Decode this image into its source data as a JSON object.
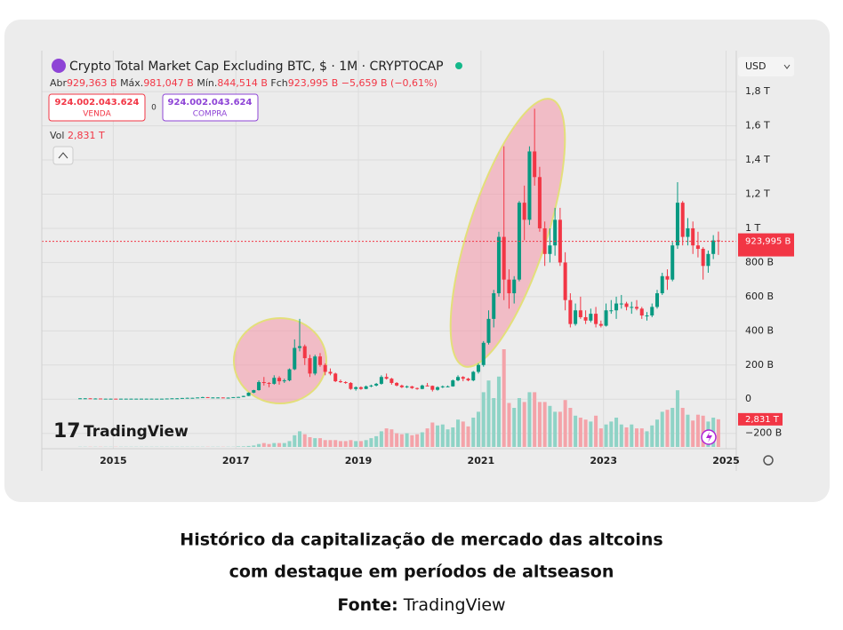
{
  "chart_data": {
    "type": "candlestick",
    "title": "Crypto Total Market Cap Excluding BTC, $ · 1M · CRYPTOCAP",
    "x": [
      "2014-06",
      "2014-07",
      "2014-08",
      "2014-09",
      "2014-10",
      "2014-11",
      "2014-12",
      "2015-01",
      "2015-02",
      "2015-03",
      "2015-04",
      "2015-05",
      "2015-06",
      "2015-07",
      "2015-08",
      "2015-09",
      "2015-10",
      "2015-11",
      "2015-12",
      "2016-01",
      "2016-02",
      "2016-03",
      "2016-04",
      "2016-05",
      "2016-06",
      "2016-07",
      "2016-08",
      "2016-09",
      "2016-10",
      "2016-11",
      "2016-12",
      "2017-01",
      "2017-02",
      "2017-03",
      "2017-04",
      "2017-05",
      "2017-06",
      "2017-07",
      "2017-08",
      "2017-09",
      "2017-10",
      "2017-11",
      "2017-12",
      "2018-01",
      "2018-02",
      "2018-03",
      "2018-04",
      "2018-05",
      "2018-06",
      "2018-07",
      "2018-08",
      "2018-09",
      "2018-10",
      "2018-11",
      "2018-12",
      "2019-01",
      "2019-02",
      "2019-03",
      "2019-04",
      "2019-05",
      "2019-06",
      "2019-07",
      "2019-08",
      "2019-09",
      "2019-10",
      "2019-11",
      "2019-12",
      "2020-01",
      "2020-02",
      "2020-03",
      "2020-04",
      "2020-05",
      "2020-06",
      "2020-07",
      "2020-08",
      "2020-09",
      "2020-10",
      "2020-11",
      "2020-12",
      "2021-01",
      "2021-02",
      "2021-03",
      "2021-04",
      "2021-05",
      "2021-06",
      "2021-07",
      "2021-08",
      "2021-09",
      "2021-10",
      "2021-11",
      "2021-12",
      "2022-01",
      "2022-02",
      "2022-03",
      "2022-04",
      "2022-05",
      "2022-06",
      "2022-07",
      "2022-08",
      "2022-09",
      "2022-10",
      "2022-11",
      "2022-12",
      "2023-01",
      "2023-02",
      "2023-03",
      "2023-04",
      "2023-05",
      "2023-06",
      "2023-07",
      "2023-08",
      "2023-09",
      "2023-10",
      "2023-11",
      "2023-12",
      "2024-01",
      "2024-02",
      "2024-03",
      "2024-04",
      "2024-05",
      "2024-06",
      "2024-07",
      "2024-08",
      "2024-09",
      "2024-10",
      "2024-11"
    ],
    "ohlc": [
      [
        5,
        6,
        4,
        5
      ],
      [
        5,
        6,
        4,
        5
      ],
      [
        5,
        5,
        4,
        4
      ],
      [
        4,
        5,
        3,
        4
      ],
      [
        4,
        4,
        3,
        3
      ],
      [
        3,
        4,
        3,
        3
      ],
      [
        3,
        4,
        3,
        3
      ],
      [
        3,
        3,
        2,
        2
      ],
      [
        2,
        3,
        2,
        3
      ],
      [
        3,
        3,
        2,
        3
      ],
      [
        3,
        3,
        2,
        3
      ],
      [
        3,
        3,
        2,
        3
      ],
      [
        3,
        4,
        3,
        3
      ],
      [
        3,
        4,
        3,
        3
      ],
      [
        3,
        3,
        2,
        3
      ],
      [
        3,
        3,
        3,
        3
      ],
      [
        3,
        3,
        2,
        3
      ],
      [
        3,
        4,
        3,
        4
      ],
      [
        4,
        5,
        4,
        5
      ],
      [
        5,
        6,
        4,
        5
      ],
      [
        5,
        7,
        5,
        7
      ],
      [
        7,
        9,
        6,
        8
      ],
      [
        8,
        8,
        7,
        8
      ],
      [
        8,
        10,
        7,
        10
      ],
      [
        10,
        14,
        9,
        12
      ],
      [
        12,
        12,
        9,
        10
      ],
      [
        10,
        11,
        9,
        10
      ],
      [
        10,
        11,
        9,
        10
      ],
      [
        10,
        10,
        9,
        9
      ],
      [
        9,
        10,
        8,
        9
      ],
      [
        9,
        12,
        9,
        12
      ],
      [
        12,
        14,
        11,
        13
      ],
      [
        13,
        20,
        12,
        19
      ],
      [
        19,
        40,
        18,
        38
      ],
      [
        38,
        55,
        35,
        53
      ],
      [
        53,
        110,
        50,
        100
      ],
      [
        100,
        130,
        80,
        95
      ],
      [
        95,
        100,
        70,
        90
      ],
      [
        90,
        140,
        85,
        125
      ],
      [
        125,
        135,
        85,
        105
      ],
      [
        105,
        120,
        95,
        110
      ],
      [
        110,
        180,
        105,
        175
      ],
      [
        175,
        350,
        170,
        300
      ],
      [
        300,
        470,
        280,
        310
      ],
      [
        310,
        320,
        200,
        240
      ],
      [
        240,
        260,
        130,
        150
      ],
      [
        150,
        260,
        140,
        250
      ],
      [
        250,
        270,
        190,
        200
      ],
      [
        200,
        210,
        140,
        160
      ],
      [
        160,
        180,
        140,
        150
      ],
      [
        150,
        155,
        100,
        105
      ],
      [
        105,
        115,
        95,
        100
      ],
      [
        100,
        105,
        90,
        95
      ],
      [
        95,
        100,
        55,
        60
      ],
      [
        60,
        75,
        50,
        70
      ],
      [
        70,
        75,
        55,
        60
      ],
      [
        60,
        80,
        58,
        75
      ],
      [
        75,
        85,
        70,
        80
      ],
      [
        80,
        95,
        75,
        90
      ],
      [
        90,
        140,
        85,
        130
      ],
      [
        130,
        150,
        115,
        120
      ],
      [
        120,
        125,
        85,
        95
      ],
      [
        95,
        100,
        75,
        80
      ],
      [
        80,
        85,
        65,
        70
      ],
      [
        70,
        80,
        65,
        75
      ],
      [
        75,
        78,
        60,
        65
      ],
      [
        65,
        68,
        55,
        60
      ],
      [
        60,
        85,
        58,
        80
      ],
      [
        80,
        95,
        75,
        78
      ],
      [
        78,
        80,
        45,
        55
      ],
      [
        55,
        75,
        50,
        70
      ],
      [
        70,
        80,
        65,
        75
      ],
      [
        75,
        80,
        70,
        75
      ],
      [
        75,
        115,
        73,
        110
      ],
      [
        110,
        140,
        105,
        130
      ],
      [
        130,
        135,
        105,
        120
      ],
      [
        120,
        125,
        105,
        110
      ],
      [
        110,
        165,
        105,
        160
      ],
      [
        160,
        210,
        150,
        200
      ],
      [
        200,
        340,
        190,
        330
      ],
      [
        330,
        520,
        320,
        470
      ],
      [
        470,
        640,
        420,
        620
      ],
      [
        620,
        980,
        600,
        950
      ],
      [
        950,
        1480,
        580,
        700
      ],
      [
        700,
        760,
        530,
        620
      ],
      [
        620,
        720,
        560,
        700
      ],
      [
        700,
        1160,
        690,
        1150
      ],
      [
        1150,
        1250,
        930,
        1050
      ],
      [
        1050,
        1480,
        1020,
        1450
      ],
      [
        1450,
        1700,
        1250,
        1300
      ],
      [
        1300,
        1360,
        980,
        1000
      ],
      [
        1000,
        1040,
        780,
        850
      ],
      [
        850,
        1000,
        800,
        900
      ],
      [
        900,
        1120,
        840,
        1050
      ],
      [
        1050,
        1120,
        780,
        800
      ],
      [
        800,
        860,
        520,
        580
      ],
      [
        580,
        620,
        420,
        440
      ],
      [
        440,
        560,
        430,
        520
      ],
      [
        520,
        600,
        470,
        480
      ],
      [
        480,
        520,
        440,
        460
      ],
      [
        460,
        530,
        450,
        500
      ],
      [
        500,
        540,
        420,
        440
      ],
      [
        440,
        460,
        420,
        430
      ],
      [
        430,
        560,
        425,
        520
      ],
      [
        520,
        580,
        500,
        520
      ],
      [
        520,
        600,
        470,
        560
      ],
      [
        560,
        610,
        530,
        560
      ],
      [
        560,
        570,
        520,
        540
      ],
      [
        540,
        570,
        500,
        540
      ],
      [
        540,
        580,
        520,
        530
      ],
      [
        530,
        540,
        470,
        490
      ],
      [
        490,
        510,
        460,
        490
      ],
      [
        490,
        560,
        480,
        540
      ],
      [
        540,
        640,
        530,
        620
      ],
      [
        620,
        740,
        610,
        720
      ],
      [
        720,
        760,
        640,
        700
      ],
      [
        700,
        920,
        690,
        900
      ],
      [
        900,
        1270,
        880,
        1150
      ],
      [
        1150,
        1160,
        900,
        950
      ],
      [
        950,
        1060,
        900,
        1000
      ],
      [
        1000,
        1040,
        850,
        900
      ],
      [
        900,
        980,
        830,
        880
      ],
      [
        880,
        890,
        700,
        780
      ],
      [
        780,
        870,
        740,
        850
      ],
      [
        850,
        960,
        820,
        929.363
      ],
      [
        929.363,
        981.047,
        844.514,
        923.995
      ]
    ],
    "volume": [
      0.02,
      0.02,
      0.02,
      0.02,
      0.02,
      0.02,
      0.02,
      0.02,
      0.02,
      0.02,
      0.02,
      0.02,
      0.02,
      0.02,
      0.02,
      0.02,
      0.02,
      0.02,
      0.02,
      0.02,
      0.02,
      0.02,
      0.02,
      0.02,
      0.02,
      0.02,
      0.02,
      0.02,
      0.02,
      0.02,
      0.02,
      0.05,
      0.06,
      0.1,
      0.15,
      0.3,
      0.4,
      0.3,
      0.4,
      0.4,
      0.4,
      0.6,
      1.2,
      1.6,
      1.3,
      1.0,
      0.9,
      0.9,
      0.7,
      0.7,
      0.7,
      0.6,
      0.6,
      0.7,
      0.6,
      0.6,
      0.7,
      0.9,
      1.1,
      1.6,
      1.9,
      1.8,
      1.4,
      1.3,
      1.4,
      1.2,
      1.3,
      1.5,
      1.9,
      2.5,
      2.2,
      2.3,
      1.8,
      2.0,
      2.8,
      2.6,
      2.1,
      3.0,
      3.6,
      5.6,
      6.8,
      5.0,
      7.2,
      10.0,
      4.5,
      4.0,
      5.0,
      4.6,
      5.6,
      5.6,
      4.6,
      4.6,
      4.2,
      3.6,
      3.6,
      4.8,
      4.0,
      3.2,
      3.0,
      2.8,
      2.6,
      3.2,
      1.9,
      2.3,
      2.6,
      3.0,
      2.3,
      2.0,
      2.3,
      1.9,
      1.9,
      1.6,
      2.2,
      2.8,
      3.6,
      3.8,
      4.0,
      5.8,
      4.0,
      3.3,
      2.7,
      3.3,
      3.2,
      2.6,
      3.0,
      2.831
    ],
    "xlim": [
      "2013-11",
      "2025-03"
    ],
    "xticks": [
      2015,
      2017,
      2019,
      2021,
      2023,
      2025
    ],
    "ylim": [
      -290,
      2040
    ],
    "yticks": [
      {
        "value": -200,
        "label": "−200 B"
      },
      0,
      {
        "value": 200,
        "label": "200 B"
      },
      {
        "value": 400,
        "label": "400 B"
      },
      {
        "value": 600,
        "label": "600 B"
      },
      {
        "value": 800,
        "label": "800 B"
      },
      {
        "value": 1000,
        "label": "1 T"
      },
      {
        "value": 1200,
        "label": "1,2 T"
      },
      {
        "value": 1400,
        "label": "1,4 T"
      },
      {
        "value": 1600,
        "label": "1,6 T"
      },
      {
        "value": 1800,
        "label": "1,8 T"
      }
    ],
    "volume_ylim": [
      0,
      10
    ],
    "up_color": "#089981",
    "down_color": "#f23645",
    "volume_up_color": "#8fd3c6",
    "volume_down_color": "#f4a3a9",
    "last_price_label": "923,995 B",
    "volume_label": "2,831 T",
    "grid": true
  },
  "header": {
    "open_label": "Abr",
    "open": "929,363 B",
    "high_label": "Máx.",
    "high": "981,047 B",
    "low_label": "Mín.",
    "low": "844,514 B",
    "close_label": "Fch",
    "close": "923,995 B",
    "change": "−5,659 B (−0,61%)",
    "sell_price": "924.002.043.624",
    "sell": "VENDA",
    "spread": "0",
    "buy_price": "924.002.043.624",
    "buy": "COMPRA",
    "volume_name": "Vol",
    "volume": "2,831 T",
    "currency": "USD"
  },
  "logo": "TradingView",
  "caption": {
    "line1": "Histórico da capitalização de mercado das altcoins",
    "line2": "com destaque em períodos de altseason",
    "source_label": "Fonte:",
    "source": "TradingView"
  }
}
